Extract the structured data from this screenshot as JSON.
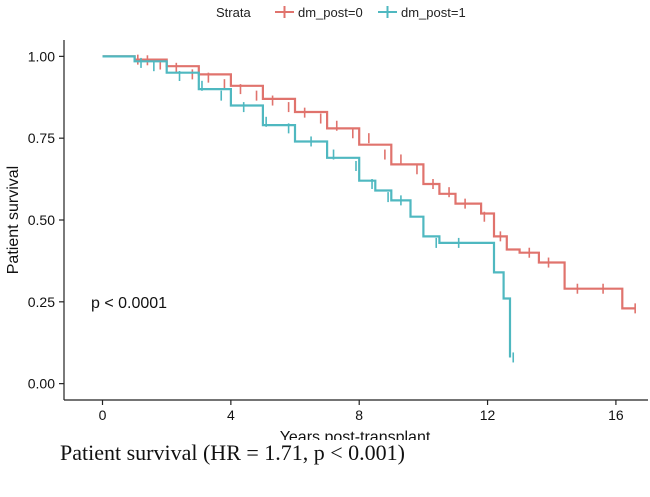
{
  "chart_data": {
    "type": "line",
    "subtype": "kaplan-meier",
    "legend": {
      "title": "Strata",
      "placement": "top",
      "entries": [
        "dm_post=0",
        "dm_post=1"
      ]
    },
    "xlabel": "Years post-transplant",
    "ylabel": "Patient survival",
    "xlim": [
      -1.2,
      17.0
    ],
    "ylim": [
      -0.05,
      1.05
    ],
    "xticks": [
      0,
      4,
      8,
      12,
      16
    ],
    "yticks": [
      0.0,
      0.25,
      0.5,
      0.75,
      1.0
    ],
    "ytick_labels": [
      "0.00",
      "0.25",
      "0.50",
      "0.75",
      "1.00"
    ],
    "grid": false,
    "annotation": "p < 0.0001",
    "series": [
      {
        "name": "dm_post=0",
        "color": "#E0736D",
        "x": [
          0,
          1,
          2,
          3,
          4,
          5,
          6,
          7,
          8,
          9,
          10,
          10.5,
          11,
          11.8,
          12.2,
          12.6,
          13.0,
          13.6,
          14.4,
          15.4,
          16.2,
          16.6
        ],
        "y": [
          1.0,
          0.99,
          0.97,
          0.945,
          0.91,
          0.87,
          0.83,
          0.78,
          0.73,
          0.67,
          0.61,
          0.58,
          0.55,
          0.52,
          0.45,
          0.41,
          0.4,
          0.37,
          0.29,
          0.29,
          0.23,
          0.23
        ],
        "censor_x": [
          1.1,
          1.4,
          1.8,
          2.3,
          2.8,
          3.3,
          3.8,
          4.3,
          4.8,
          5.3,
          5.8,
          6.3,
          6.8,
          7.3,
          7.8,
          8.3,
          8.8,
          9.3,
          9.8,
          10.3,
          10.8,
          11.3,
          11.9,
          12.4,
          13.3,
          13.9,
          14.8,
          15.6,
          16.6
        ],
        "censor_y": [
          0.99,
          0.988,
          0.975,
          0.965,
          0.945,
          0.935,
          0.915,
          0.9,
          0.88,
          0.865,
          0.845,
          0.828,
          0.81,
          0.788,
          0.765,
          0.75,
          0.7,
          0.685,
          0.655,
          0.61,
          0.585,
          0.55,
          0.51,
          0.45,
          0.4,
          0.37,
          0.29,
          0.29,
          0.23
        ]
      },
      {
        "name": "dm_post=1",
        "color": "#4FB8C0",
        "x": [
          0,
          1,
          2,
          3,
          4,
          5,
          6,
          7,
          8,
          8.5,
          9,
          9.6,
          10.0,
          10.5,
          11.6,
          12.2,
          12.5,
          12.7
        ],
        "y": [
          1.0,
          0.985,
          0.95,
          0.9,
          0.85,
          0.79,
          0.74,
          0.69,
          0.62,
          0.59,
          0.56,
          0.51,
          0.45,
          0.43,
          0.43,
          0.34,
          0.26,
          0.08
        ],
        "censor_x": [
          1.2,
          1.6,
          2.4,
          3.1,
          3.7,
          4.4,
          5.1,
          5.8,
          6.5,
          7.2,
          7.9,
          8.4,
          8.9,
          9.3,
          10.4,
          11.1,
          12.8
        ],
        "censor_y": [
          0.98,
          0.97,
          0.94,
          0.91,
          0.88,
          0.845,
          0.8,
          0.78,
          0.74,
          0.7,
          0.665,
          0.61,
          0.57,
          0.56,
          0.43,
          0.43,
          0.08
        ]
      }
    ]
  },
  "caption": "Patient survival (HR = 1.71, p < 0.001)"
}
